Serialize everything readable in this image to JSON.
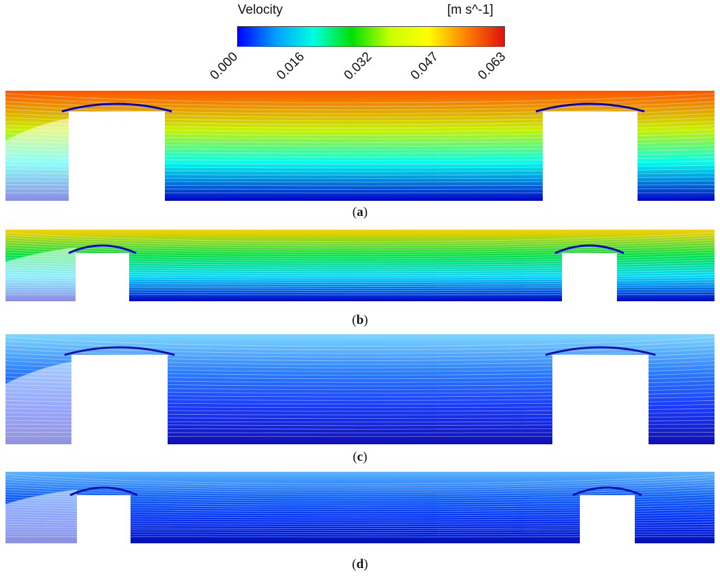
{
  "legend": {
    "title": "Velocity",
    "unit": "[m s^-1]",
    "ticks": [
      "0.000",
      "0.016",
      "0.032",
      "0.047",
      "0.063"
    ],
    "colormap": [
      "#0000ff",
      "#00a0ff",
      "#00ffe0",
      "#00e000",
      "#c8ff00",
      "#ffff00",
      "#ff8000",
      "#e01010"
    ]
  },
  "panels": [
    {
      "caption_open": "(",
      "label": "a",
      "caption_close": ")",
      "top_color": "#ff5500",
      "mid_color": "#c8f000",
      "low_color": "#00ffee",
      "floor_color": "#0000cc"
    },
    {
      "caption_open": "(",
      "label": "b",
      "caption_close": ")",
      "top_color": "#ffd000",
      "mid_color": "#00e040",
      "low_color": "#00d8ff",
      "floor_color": "#0000cc"
    },
    {
      "caption_open": "(",
      "label": "c",
      "caption_close": ")",
      "top_color": "#7fd8ff",
      "mid_color": "#2a7bff",
      "low_color": "#1a3cff",
      "floor_color": "#1010b0"
    },
    {
      "caption_open": "(",
      "label": "d",
      "caption_close": ")",
      "top_color": "#5fb6ff",
      "mid_color": "#0a5cff",
      "low_color": "#0030ff",
      "floor_color": "#0010b8"
    }
  ]
}
